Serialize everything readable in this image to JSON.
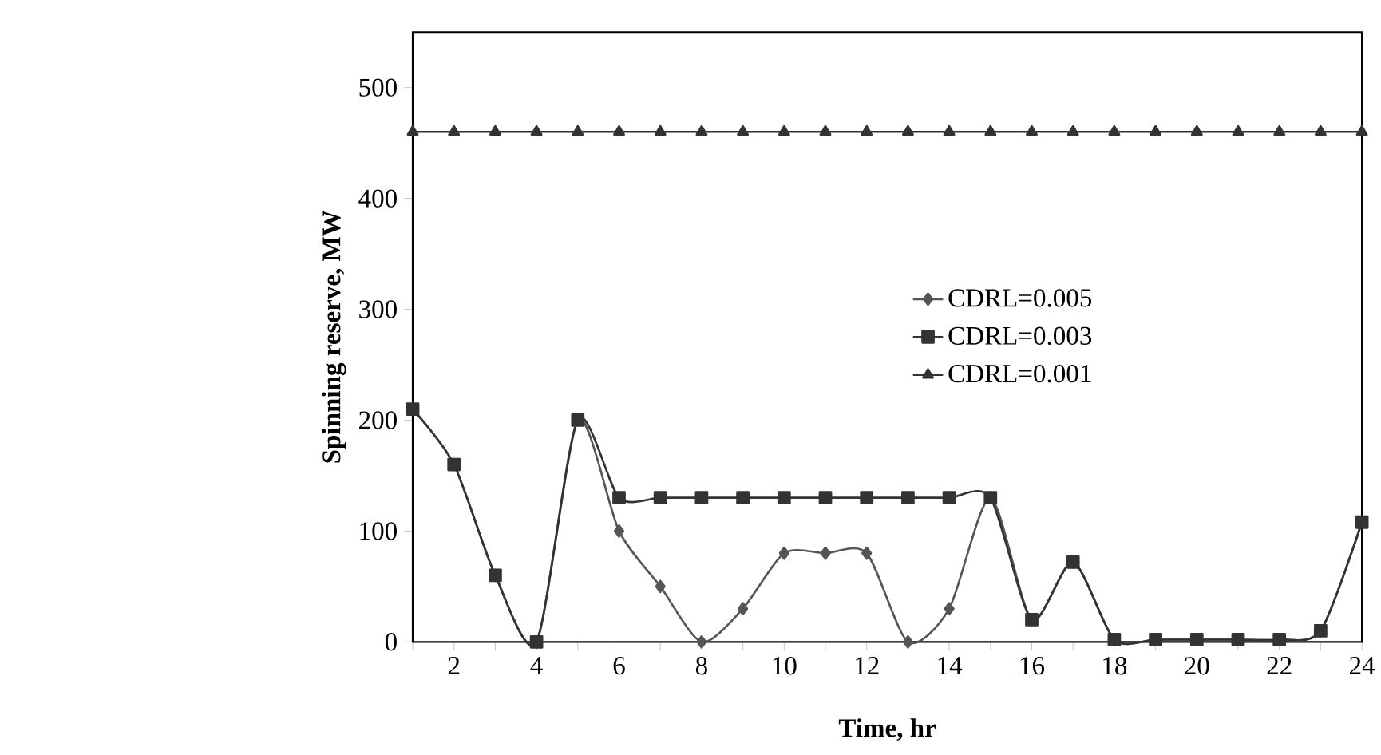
{
  "chart_data": {
    "type": "line",
    "xlabel": "Time, hr",
    "ylabel": "Spinning reserve, MW",
    "x": [
      1,
      2,
      3,
      4,
      5,
      6,
      7,
      8,
      9,
      10,
      11,
      12,
      13,
      14,
      15,
      16,
      17,
      18,
      19,
      20,
      21,
      22,
      23,
      24
    ],
    "series": [
      {
        "name": "CDRL=0.005",
        "color": "#555555",
        "marker": "diamond",
        "values": [
          210,
          160,
          60,
          0,
          200,
          100,
          50,
          0,
          30,
          80,
          80,
          80,
          0,
          30,
          130,
          20,
          72,
          2,
          2,
          2,
          2,
          2,
          10,
          108
        ]
      },
      {
        "name": "CDRL=0.003",
        "color": "#333333",
        "marker": "square",
        "values": [
          210,
          160,
          60,
          0,
          200,
          130,
          130,
          130,
          130,
          130,
          130,
          130,
          130,
          130,
          130,
          20,
          72,
          2,
          2,
          2,
          2,
          2,
          10,
          108
        ]
      },
      {
        "name": "CDRL=0.001",
        "color": "#333333",
        "marker": "triangle",
        "values": [
          460,
          460,
          460,
          460,
          460,
          460,
          460,
          460,
          460,
          460,
          460,
          460,
          460,
          460,
          460,
          460,
          460,
          460,
          460,
          460,
          460,
          460,
          460,
          460
        ]
      }
    ],
    "xlim": [
      1,
      24
    ],
    "xticks": [
      {
        "value": 1,
        "label": null
      },
      2,
      {
        "value": 3,
        "label": null
      },
      4,
      {
        "value": 5,
        "label": null
      },
      6,
      {
        "value": 7,
        "label": null
      },
      8,
      {
        "value": 9,
        "label": null
      },
      10,
      {
        "value": 11,
        "label": null
      },
      12,
      {
        "value": 13,
        "label": null
      },
      14,
      {
        "value": 15,
        "label": null
      },
      16,
      {
        "value": 17,
        "label": null
      },
      18,
      {
        "value": 19,
        "label": null
      },
      20,
      {
        "value": 21,
        "label": null
      },
      22,
      {
        "value": 23,
        "label": null
      },
      24
    ],
    "ylim": [
      0,
      550
    ],
    "yticks": [
      0,
      100,
      200,
      300,
      400,
      500
    ],
    "grid": false,
    "legend": "right",
    "line_style": "solid"
  }
}
